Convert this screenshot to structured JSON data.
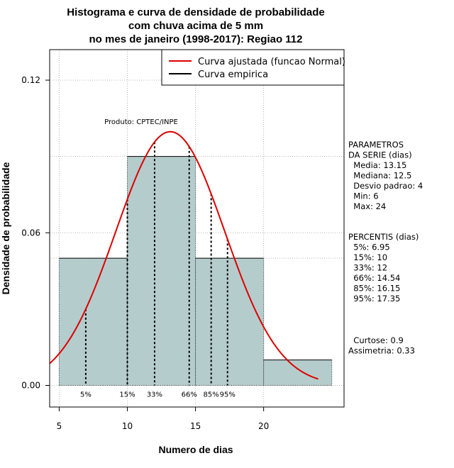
{
  "chart_data": {
    "type": "bar",
    "title_lines": [
      "Histograma e curva de densidade de probabilidade",
      "com chuva acima de 5 mm",
      "no mes de janeiro (1998-2017): Regiao 112"
    ],
    "xlabel": "Numero de dias",
    "ylabel": "Densidade de probabilidade",
    "xlim": [
      4.3,
      25.9
    ],
    "ylim": [
      -0.0085,
      0.132
    ],
    "x_ticks": [
      5,
      10,
      15,
      20
    ],
    "y_ticks": [
      0.0,
      0.06,
      0.12
    ],
    "x_tick_labels": [
      "5",
      "10",
      "15",
      "20"
    ],
    "y_tick_labels": [
      "0.00",
      "0.06",
      "0.12"
    ],
    "grid": true,
    "bins": [
      {
        "from": 5,
        "to": 10,
        "density": 0.05
      },
      {
        "from": 10,
        "to": 15,
        "density": 0.09
      },
      {
        "from": 15,
        "to": 20,
        "density": 0.05
      },
      {
        "from": 20,
        "to": 25,
        "density": 0.01
      }
    ],
    "bar_color": "#b5cccc",
    "normal_curve": {
      "mean": 13.15,
      "sd": 4,
      "range": [
        4.3,
        24.0
      ],
      "color": "#dd0000"
    },
    "percentile_lines": [
      {
        "label": "5%",
        "x": 6.95
      },
      {
        "label": "15%",
        "x": 10
      },
      {
        "label": "33%",
        "x": 12
      },
      {
        "label": "66%",
        "x": 14.54
      },
      {
        "label": "85%",
        "x": 16.15
      },
      {
        "label": "95%",
        "x": 17.35
      }
    ],
    "legend": {
      "placement": "top-right",
      "entries": [
        {
          "label": "Curva ajustada (funcao Normal)",
          "color": "#dd0000"
        },
        {
          "label": "Curva empirica",
          "color": "#000000"
        }
      ]
    },
    "annotation": "Produto: CPTEC/INPE"
  },
  "side_panel": {
    "params_lines": [
      "PARAMETROS",
      "DA SERIE (dias)",
      "  Media: 13.15",
      "  Mediana: 12.5",
      "  Desvio padrao: 4",
      "  Min: 6",
      "  Max: 24"
    ],
    "percentis_lines": [
      "PERCENTIS (dias)",
      "  5%: 6.95",
      "  15%: 10",
      "  33%: 12",
      "  66%: 14.54",
      "  85%: 16.15",
      "  95%: 17.35"
    ],
    "stats_lines": [
      "  Curtose: 0.9",
      "Assimetria: 0.33"
    ]
  }
}
